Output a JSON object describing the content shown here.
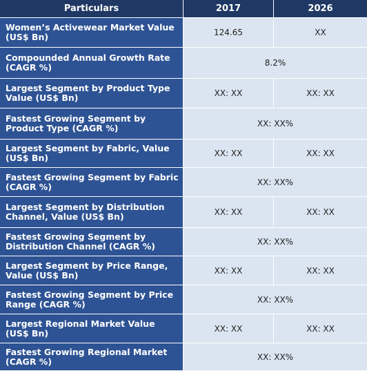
{
  "header": {
    "particulars": "Particulars",
    "year1": "2017",
    "year2": "2026"
  },
  "rows": [
    {
      "label": "Women’s Activewear Market Value (US$ Bn)",
      "v2017": "124.65",
      "v2026": "XX"
    },
    {
      "label": "Compounded Annual Growth Rate (CAGR %)",
      "merged": "8.2%"
    },
    {
      "label": "Largest Segment by Product Type Value (US$ Bn)",
      "v2017": "XX: XX",
      "v2026": "XX:  XX"
    },
    {
      "label": "Fastest Growing Segment by Product Type (CAGR %)",
      "merged": "XX:  XX%"
    },
    {
      "label": "Largest Segment by Fabric, Value (US$ Bn)",
      "v2017": "XX: XX",
      "v2026": "XX:  XX"
    },
    {
      "label": "Fastest Growing Segment by Fabric (CAGR %)",
      "merged": "XX:  XX%"
    },
    {
      "label": "Largest Segment by Distribution Channel, Value (US$ Bn)",
      "v2017": "XX: XX",
      "v2026": "XX:  XX"
    },
    {
      "label": "Fastest Growing Segment by Distribution Channel (CAGR %)",
      "merged": "XX:  XX%"
    },
    {
      "label": "Largest Segment by Price Range, Value (US$ Bn)",
      "v2017": "XX: XX",
      "v2026": "XX: XX"
    },
    {
      "label": "Fastest Growing Segment by Price Range (CAGR %)",
      "merged": "XX:  XX%"
    },
    {
      "label": "Largest Regional Market Value (US$ Bn)",
      "v2017": "XX: XX",
      "v2026": "XX: XX"
    },
    {
      "label": "Fastest Growing Regional Market (CAGR %)",
      "merged": "XX: XX%"
    }
  ],
  "colors": {
    "header_bg": "#1f3864",
    "label_bg": "#2e5394",
    "value_bg": "#dbe5f1"
  }
}
